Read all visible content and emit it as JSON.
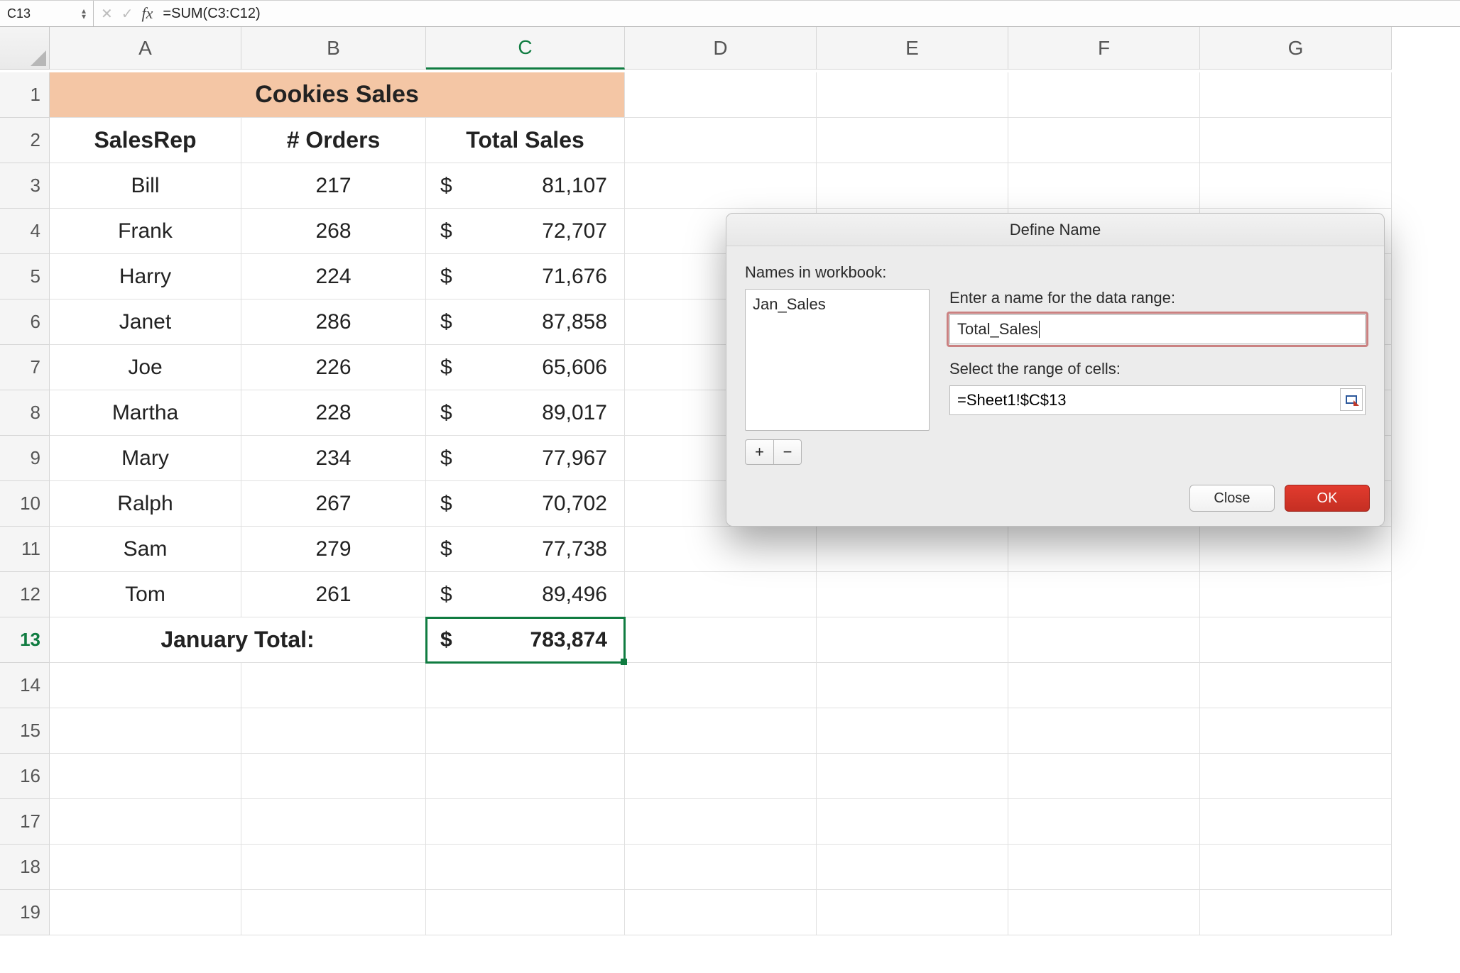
{
  "formula_bar": {
    "name_box": "C13",
    "formula": "=SUM(C3:C12)"
  },
  "columns": [
    "A",
    "B",
    "C",
    "D",
    "E",
    "F",
    "G"
  ],
  "row_count": 19,
  "active_row": 13,
  "active_col": "C",
  "title_cell": "Cookies Sales",
  "title_bg": "#f4c6a5",
  "headers": {
    "a": "SalesRep",
    "b": "# Orders",
    "c": "Total Sales"
  },
  "rows": [
    {
      "rep": "Bill",
      "orders": "217",
      "sales": "81,107"
    },
    {
      "rep": "Frank",
      "orders": "268",
      "sales": "72,707"
    },
    {
      "rep": "Harry",
      "orders": "224",
      "sales": "71,676"
    },
    {
      "rep": "Janet",
      "orders": "286",
      "sales": "87,858"
    },
    {
      "rep": "Joe",
      "orders": "226",
      "sales": "65,606"
    },
    {
      "rep": "Martha",
      "orders": "228",
      "sales": "89,017"
    },
    {
      "rep": "Mary",
      "orders": "234",
      "sales": "77,967"
    },
    {
      "rep": "Ralph",
      "orders": "267",
      "sales": "70,702"
    },
    {
      "rep": "Sam",
      "orders": "279",
      "sales": "77,738"
    },
    {
      "rep": "Tom",
      "orders": "261",
      "sales": "89,496"
    }
  ],
  "total_label": "January Total:",
  "total_value": "783,874",
  "currency_symbol": "$",
  "dialog": {
    "title": "Define Name",
    "names_label": "Names in workbook:",
    "existing_names": [
      "Jan_Sales"
    ],
    "name_field_label": "Enter a name for the data range:",
    "name_field_value": "Total_Sales",
    "range_field_label": "Select the range of cells:",
    "range_field_value": "=Sheet1!$C$13",
    "plus_label": "+",
    "minus_label": "−",
    "close_label": "Close",
    "ok_label": "OK"
  },
  "colors": {
    "accent_green": "#107c41",
    "dialog_bg": "#ececec",
    "ok_button": "#c52f23",
    "highlight_border": "#b43b3b"
  }
}
